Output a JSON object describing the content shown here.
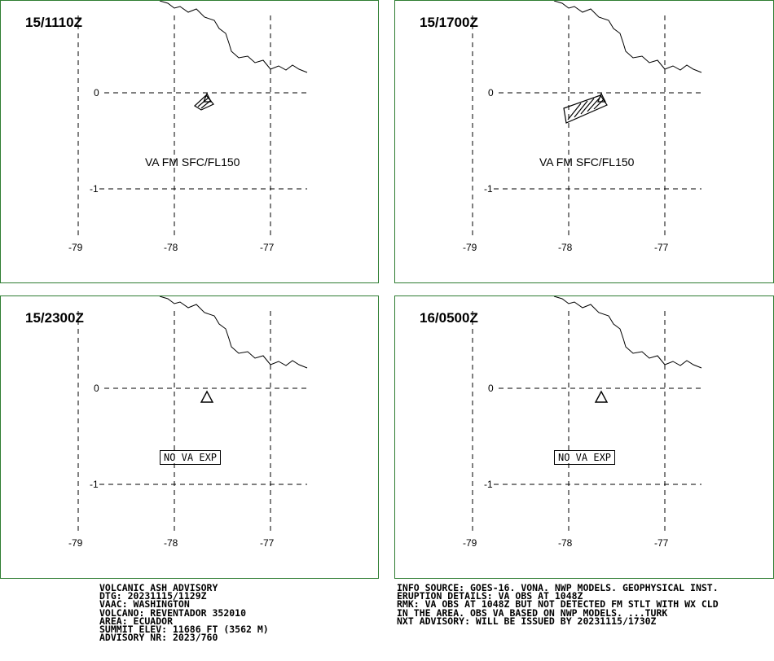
{
  "panels": [
    {
      "time": "15/1110Z",
      "label": "VA FM SFC/FL150",
      "no_va": ""
    },
    {
      "time": "15/1700Z",
      "label": "VA FM SFC/FL150",
      "no_va": ""
    },
    {
      "time": "15/2300Z",
      "label": "",
      "no_va": "NO VA EXP"
    },
    {
      "time": "16/0500Z",
      "label": "",
      "no_va": "NO VA EXP"
    }
  ],
  "axes": {
    "lat_labels": [
      "0",
      "-1"
    ],
    "lon_labels": [
      "-79",
      "-78",
      "-77"
    ]
  },
  "advisory_left": [
    "VOLCANIC ASH ADVISORY",
    "DTG: 20231115/1129Z",
    "VAAC: WASHINGTON",
    "VOLCANO: REVENTADOR 352010",
    "AREA: ECUADOR",
    "SUMMIT ELEV: 11686 FT (3562 M)",
    "ADVISORY NR: 2023/760"
  ],
  "advisory_right": [
    "INFO SOURCE: GOES-16. VONA. NWP MODELS. GEOPHYSICAL INST.",
    "ERUPTION DETAILS: VA OBS AT 1048Z",
    "RMK: VA OBS AT 1048Z BUT NOT DETECTED FM STLT WITH WX CLD",
    "IN THE AREA. OBS VA BASED ON NWP MODELS. ...TURK",
    "NXT ADVISORY: WILL BE ISSUED BY 20231115/1730Z"
  ],
  "colors": {
    "border": "#2e7d32",
    "ink": "#000000",
    "background": "#ffffff"
  },
  "icons": {
    "volcano": "volcano-triangle-icon"
  }
}
